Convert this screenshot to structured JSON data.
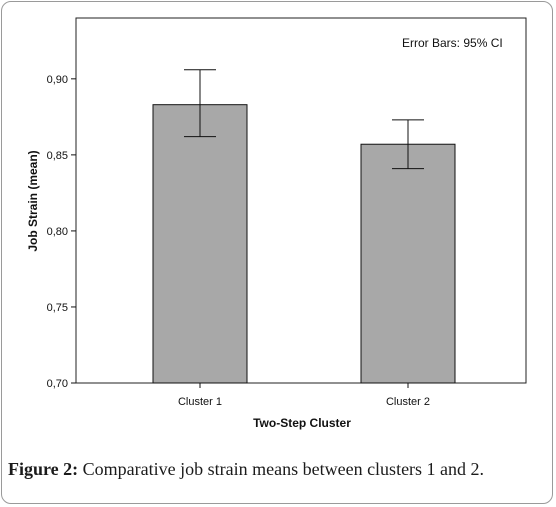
{
  "chart_data": {
    "type": "bar",
    "categories": [
      "Cluster 1",
      "Cluster 2"
    ],
    "values": [
      0.883,
      0.857
    ],
    "error_bars": [
      {
        "low": 0.862,
        "high": 0.906
      },
      {
        "low": 0.841,
        "high": 0.873
      }
    ],
    "xlabel": "Two-Step Cluster",
    "ylabel": "Job Strain (mean)",
    "ylim": [
      0.7,
      0.94
    ],
    "yticks": [
      0.7,
      0.75,
      0.8,
      0.85,
      0.9
    ],
    "ytick_labels": [
      "0,70",
      "0,75",
      "0,80",
      "0,85",
      "0,90"
    ],
    "annotation": "Error Bars: 95% CI",
    "bar_color": "#a8a8a8",
    "grid": false
  },
  "caption": {
    "label": "Figure 2:",
    "text": "Comparative job strain means between clusters 1 and 2."
  }
}
